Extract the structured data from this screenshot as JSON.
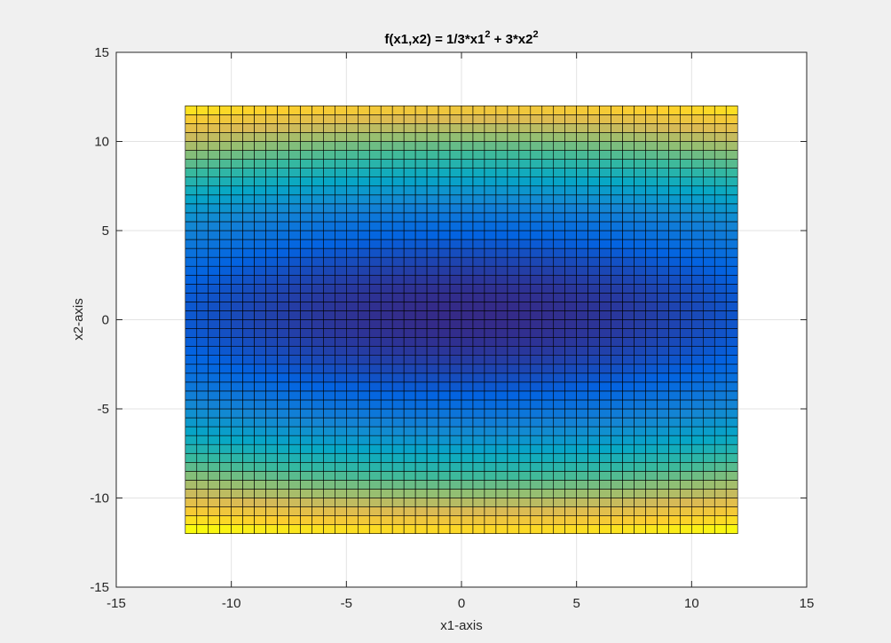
{
  "chart_data": {
    "type": "heatmap",
    "title": "f(x1,x2) = 1/3*x1",
    "title_sup_1": "2",
    "title_mid": " + 3*x2",
    "title_sup_2": "2",
    "xlabel": "x1-axis",
    "ylabel": "x2-axis",
    "xlim": [
      -15,
      15
    ],
    "ylim": [
      -15,
      15
    ],
    "xticks": [
      -15,
      -10,
      -5,
      0,
      5,
      10,
      15
    ],
    "yticks": [
      -15,
      -10,
      -5,
      0,
      5,
      10,
      15
    ],
    "xtick_labels": [
      "-15",
      "-10",
      "-5",
      "0",
      "5",
      "10",
      "15"
    ],
    "ytick_labels": [
      "-15",
      "-10",
      "-5",
      "0",
      "5",
      "10",
      "15"
    ],
    "grid": true,
    "function": "1/3*x1^2 + 3*x2^2",
    "x_range": [
      -12,
      12
    ],
    "y_range": [
      -12,
      12
    ],
    "grid_step": 0.5,
    "view": "top-down (2D)",
    "colormap": "parula",
    "colormap_stops": [
      "#352a87",
      "#0363e1",
      "#1485d4",
      "#06a7c6",
      "#38b99e",
      "#92bf73",
      "#d9ba56",
      "#fcce2e",
      "#f9fb0e"
    ],
    "edge_color": "#000000"
  }
}
